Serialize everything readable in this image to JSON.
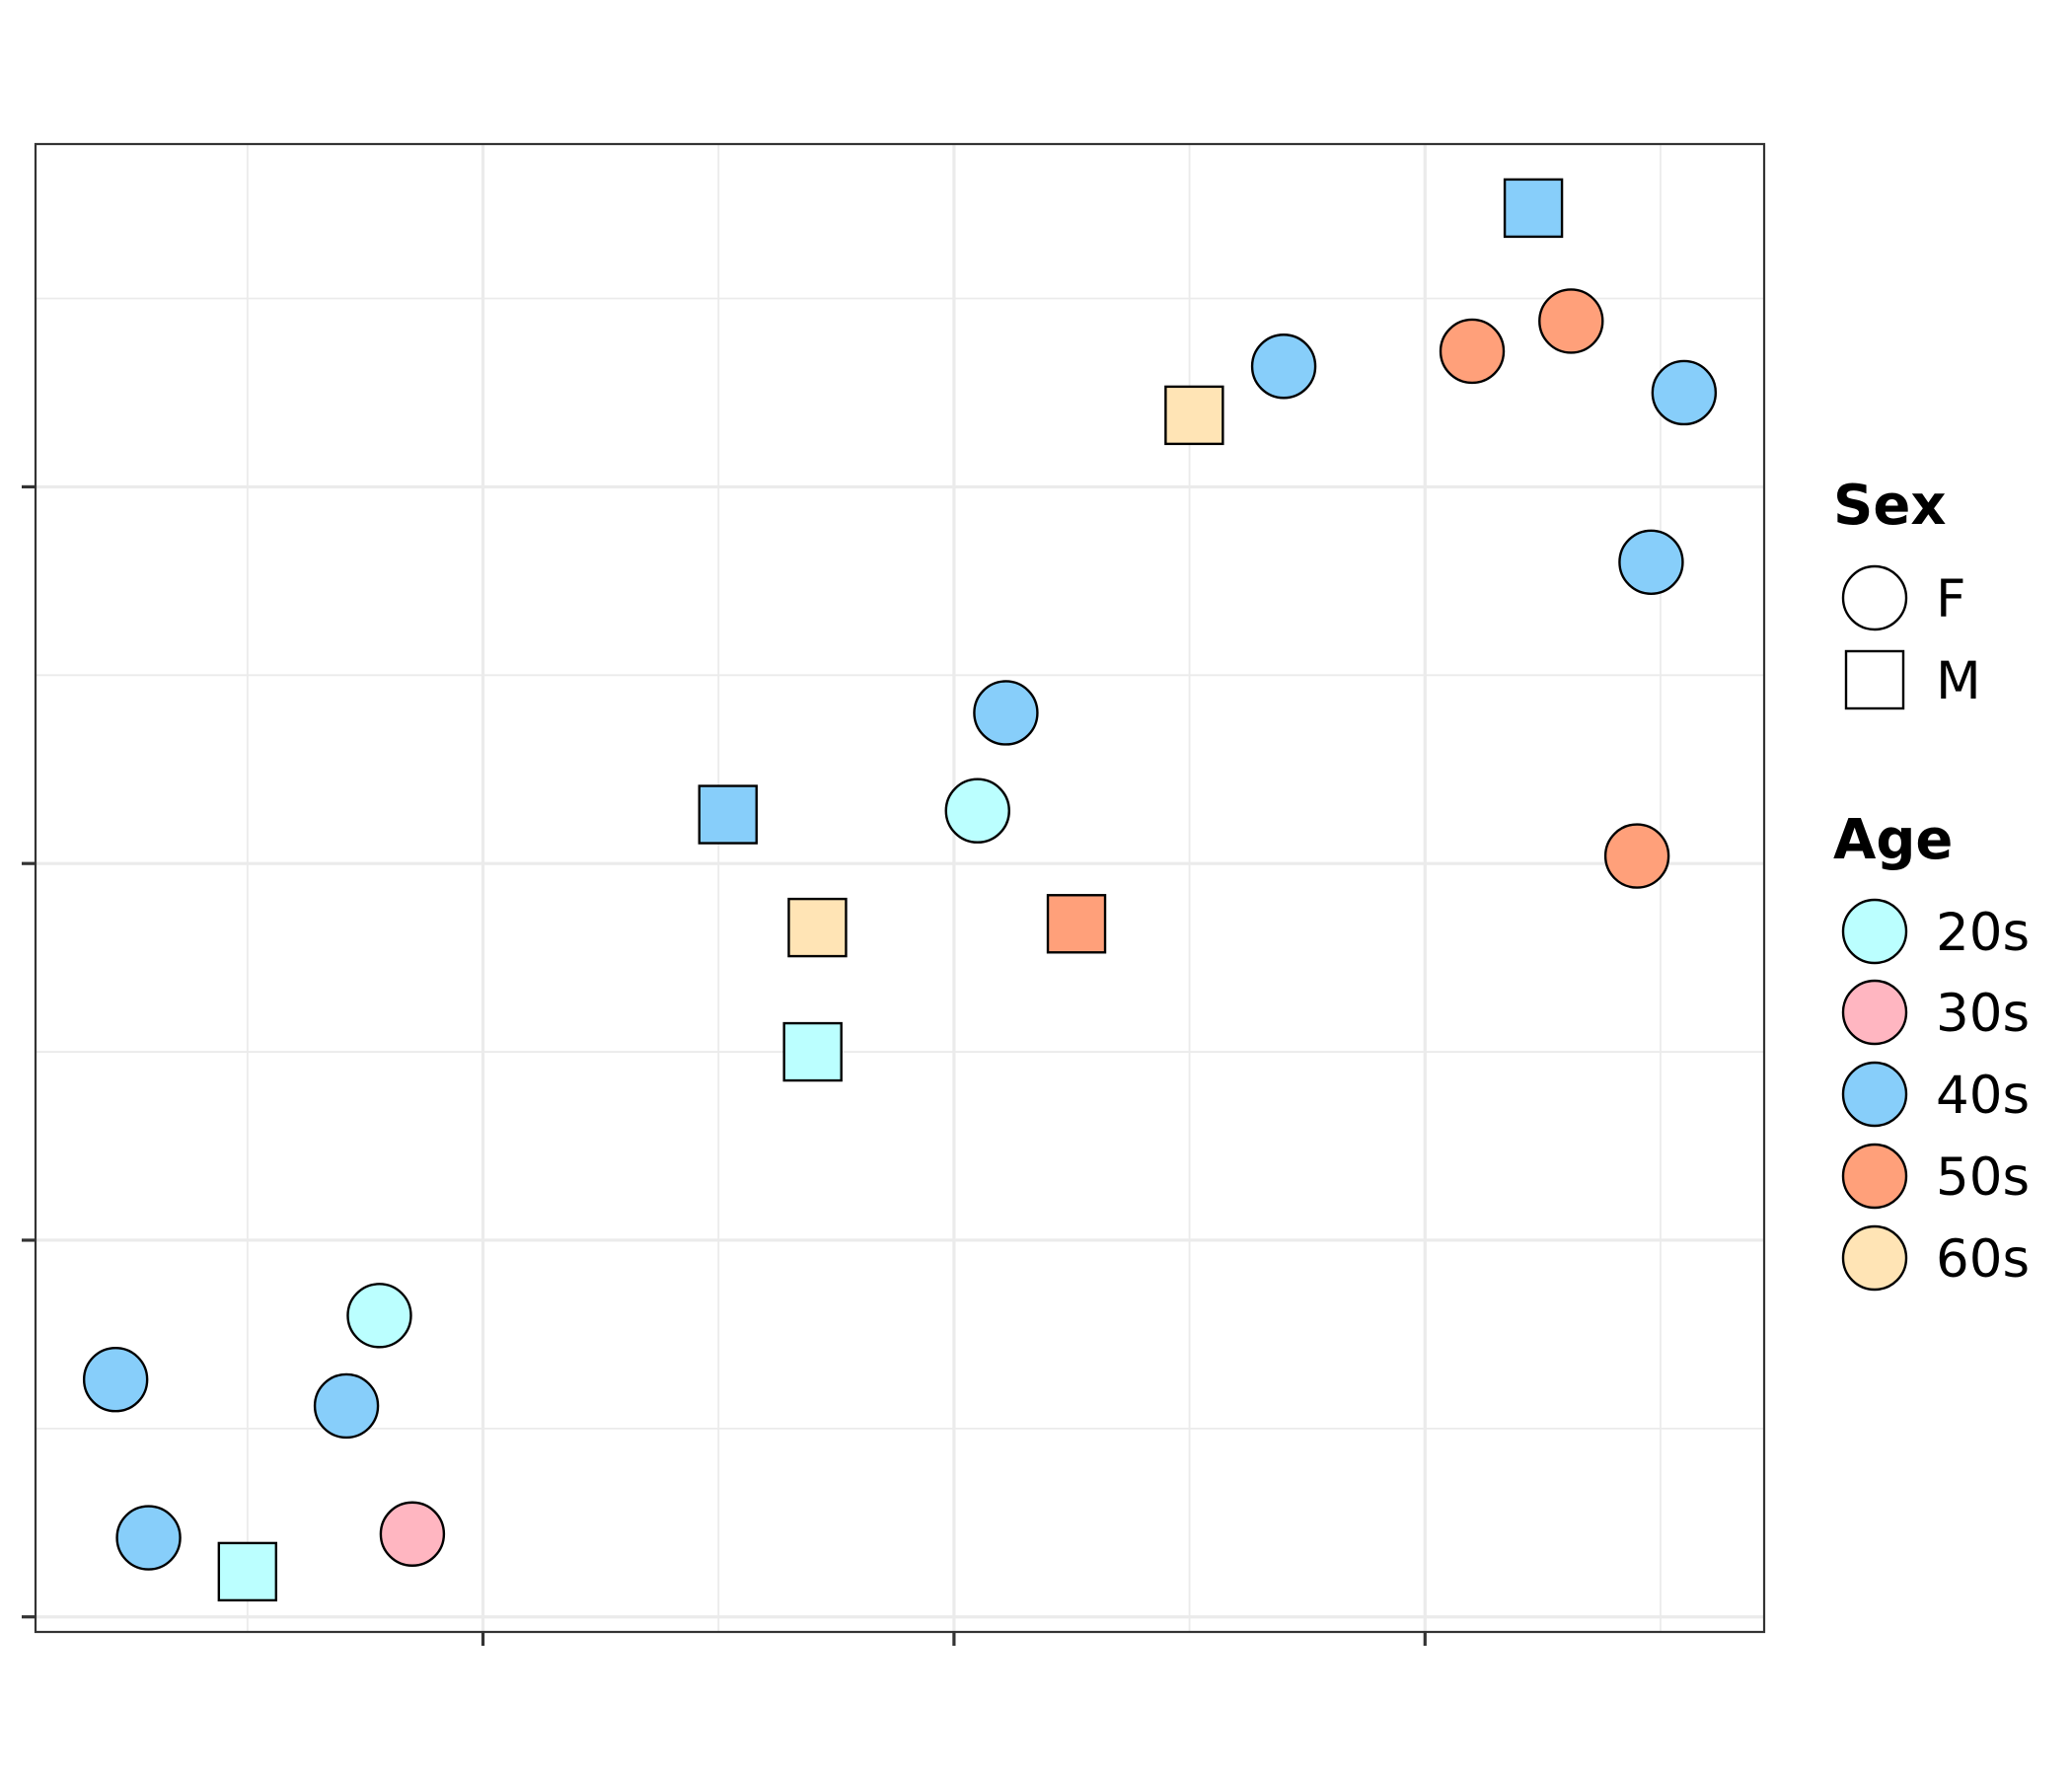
{
  "chart_data": {
    "type": "scatter",
    "title": "",
    "xlabel": "",
    "ylabel": "",
    "xlim": [
      -0.95,
      2.72
    ],
    "ylim": [
      -2.04,
      1.91
    ],
    "x_major_ticks": [
      0,
      1,
      2
    ],
    "y_major_ticks": [
      -2,
      -1,
      0,
      1
    ],
    "tick_labels_shown": false,
    "grid": true,
    "theme": "bw",
    "legend_position": "right",
    "legends": [
      {
        "title": "Sex",
        "aesthetic": "shape",
        "entries": [
          {
            "label": "F",
            "shape": "circle"
          },
          {
            "label": "M",
            "shape": "square"
          }
        ]
      },
      {
        "title": "Age",
        "aesthetic": "fill",
        "entries": [
          {
            "label": "20s",
            "color": "#BBFFFF"
          },
          {
            "label": "30s",
            "color": "#FFB6C1"
          },
          {
            "label": "40s",
            "color": "#87CEFA"
          },
          {
            "label": "50s",
            "color": "#FFA07A"
          },
          {
            "label": "60s",
            "color": "#FFE4B5"
          }
        ]
      }
    ],
    "points": [
      {
        "x": -0.78,
        "y": -1.37,
        "sex": "F",
        "age": "40s"
      },
      {
        "x": -0.71,
        "y": -1.79,
        "sex": "F",
        "age": "40s"
      },
      {
        "x": -0.5,
        "y": -1.88,
        "sex": "M",
        "age": "20s"
      },
      {
        "x": -0.29,
        "y": -1.44,
        "sex": "F",
        "age": "40s"
      },
      {
        "x": -0.22,
        "y": -1.2,
        "sex": "F",
        "age": "20s"
      },
      {
        "x": -0.15,
        "y": -1.78,
        "sex": "F",
        "age": "30s"
      },
      {
        "x": 0.52,
        "y": 0.13,
        "sex": "M",
        "age": "40s"
      },
      {
        "x": 0.7,
        "y": -0.5,
        "sex": "M",
        "age": "20s"
      },
      {
        "x": 0.71,
        "y": -0.17,
        "sex": "M",
        "age": "60s"
      },
      {
        "x": 1.05,
        "y": 0.14,
        "sex": "F",
        "age": "20s"
      },
      {
        "x": 1.11,
        "y": 0.4,
        "sex": "F",
        "age": "40s"
      },
      {
        "x": 1.26,
        "y": -0.16,
        "sex": "M",
        "age": "50s"
      },
      {
        "x": 1.51,
        "y": 1.19,
        "sex": "M",
        "age": "60s"
      },
      {
        "x": 1.7,
        "y": 1.32,
        "sex": "F",
        "age": "40s"
      },
      {
        "x": 2.1,
        "y": 1.36,
        "sex": "F",
        "age": "50s"
      },
      {
        "x": 2.23,
        "y": 1.74,
        "sex": "M",
        "age": "40s"
      },
      {
        "x": 2.31,
        "y": 1.44,
        "sex": "F",
        "age": "50s"
      },
      {
        "x": 2.45,
        "y": 0.02,
        "sex": "F",
        "age": "50s"
      },
      {
        "x": 2.48,
        "y": 0.8,
        "sex": "F",
        "age": "40s"
      },
      {
        "x": 2.55,
        "y": 1.25,
        "sex": "F",
        "age": "40s"
      }
    ]
  }
}
